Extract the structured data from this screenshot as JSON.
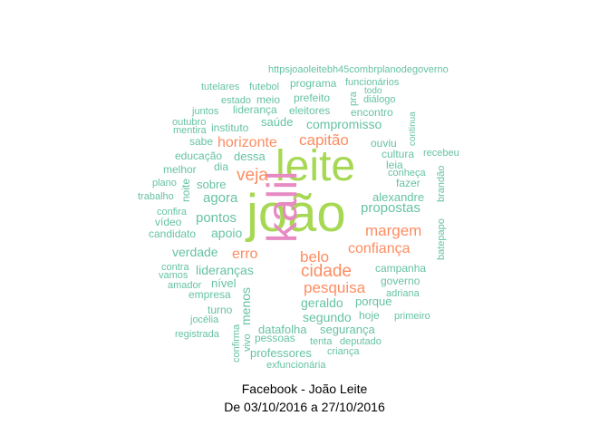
{
  "caption": {
    "line1": "Facebook - João Leite",
    "line2": "De 03/10/2016 a 27/10/2016"
  },
  "colors": {
    "tier1": "#a6d854",
    "tier2": "#e78ac3",
    "tier3": "#fc8d62",
    "tier4": "#66c2a5"
  },
  "words": [
    {
      "text": "joão",
      "tier": "tier1"
    },
    {
      "text": "leite",
      "tier": "tier1"
    },
    {
      "text": "kalil",
      "tier": "tier2"
    },
    {
      "text": "capitão",
      "tier": "tier3"
    },
    {
      "text": "horizonte",
      "tier": "tier3"
    },
    {
      "text": "veja",
      "tier": "tier3"
    },
    {
      "text": "margem",
      "tier": "tier3"
    },
    {
      "text": "confiança",
      "tier": "tier3"
    },
    {
      "text": "belo",
      "tier": "tier3"
    },
    {
      "text": "erro",
      "tier": "tier3"
    },
    {
      "text": "cidade",
      "tier": "tier3"
    },
    {
      "text": "pesquisa",
      "tier": "tier3"
    },
    {
      "text": "httpsjoaoleitebh45combrplanodegoverno",
      "tier": "tier4"
    },
    {
      "text": "programa",
      "tier": "tier4"
    },
    {
      "text": "funcionários",
      "tier": "tier4"
    },
    {
      "text": "tutelares",
      "tier": "tier4"
    },
    {
      "text": "futebol",
      "tier": "tier4"
    },
    {
      "text": "pra",
      "tier": "tier4"
    },
    {
      "text": "todo",
      "tier": "tier4"
    },
    {
      "text": "diálogo",
      "tier": "tier4"
    },
    {
      "text": "estado",
      "tier": "tier4"
    },
    {
      "text": "meio",
      "tier": "tier4"
    },
    {
      "text": "prefeito",
      "tier": "tier4"
    },
    {
      "text": "juntos",
      "tier": "tier4"
    },
    {
      "text": "liderança",
      "tier": "tier4"
    },
    {
      "text": "eleitores",
      "tier": "tier4"
    },
    {
      "text": "encontro",
      "tier": "tier4"
    },
    {
      "text": "continua",
      "tier": "tier4"
    },
    {
      "text": "outubro",
      "tier": "tier4"
    },
    {
      "text": "mentira",
      "tier": "tier4"
    },
    {
      "text": "instituto",
      "tier": "tier4"
    },
    {
      "text": "saúde",
      "tier": "tier4"
    },
    {
      "text": "compromisso",
      "tier": "tier4"
    },
    {
      "text": "sabe",
      "tier": "tier4"
    },
    {
      "text": "ouviu",
      "tier": "tier4"
    },
    {
      "text": "educação",
      "tier": "tier4"
    },
    {
      "text": "dessa",
      "tier": "tier4"
    },
    {
      "text": "cultura",
      "tier": "tier4"
    },
    {
      "text": "recebeu",
      "tier": "tier4"
    },
    {
      "text": "melhor",
      "tier": "tier4"
    },
    {
      "text": "dia",
      "tier": "tier4"
    },
    {
      "text": "leia",
      "tier": "tier4"
    },
    {
      "text": "conheça",
      "tier": "tier4"
    },
    {
      "text": "plano",
      "tier": "tier4"
    },
    {
      "text": "noite",
      "tier": "tier4"
    },
    {
      "text": "sobre",
      "tier": "tier4"
    },
    {
      "text": "fazer",
      "tier": "tier4"
    },
    {
      "text": "brandão",
      "tier": "tier4"
    },
    {
      "text": "trabalho",
      "tier": "tier4"
    },
    {
      "text": "agora",
      "tier": "tier4"
    },
    {
      "text": "alexandre",
      "tier": "tier4"
    },
    {
      "text": "confira",
      "tier": "tier4"
    },
    {
      "text": "propostas",
      "tier": "tier4"
    },
    {
      "text": "vídeo",
      "tier": "tier4"
    },
    {
      "text": "pontos",
      "tier": "tier4"
    },
    {
      "text": "batepapo",
      "tier": "tier4"
    },
    {
      "text": "candidato",
      "tier": "tier4"
    },
    {
      "text": "apoio",
      "tier": "tier4"
    },
    {
      "text": "verdade",
      "tier": "tier4"
    },
    {
      "text": "contra",
      "tier": "tier4"
    },
    {
      "text": "vamos",
      "tier": "tier4"
    },
    {
      "text": "lideranças",
      "tier": "tier4"
    },
    {
      "text": "campanha",
      "tier": "tier4"
    },
    {
      "text": "amador",
      "tier": "tier4"
    },
    {
      "text": "nível",
      "tier": "tier4"
    },
    {
      "text": "governo",
      "tier": "tier4"
    },
    {
      "text": "empresa",
      "tier": "tier4"
    },
    {
      "text": "menos",
      "tier": "tier4"
    },
    {
      "text": "adriana",
      "tier": "tier4"
    },
    {
      "text": "geraldo",
      "tier": "tier4"
    },
    {
      "text": "porque",
      "tier": "tier4"
    },
    {
      "text": "turno",
      "tier": "tier4"
    },
    {
      "text": "segundo",
      "tier": "tier4"
    },
    {
      "text": "hoje",
      "tier": "tier4"
    },
    {
      "text": "primeiro",
      "tier": "tier4"
    },
    {
      "text": "jocélia",
      "tier": "tier4"
    },
    {
      "text": "datafolha",
      "tier": "tier4"
    },
    {
      "text": "segurança",
      "tier": "tier4"
    },
    {
      "text": "registrada",
      "tier": "tier4"
    },
    {
      "text": "confirma",
      "tier": "tier4"
    },
    {
      "text": "vivo",
      "tier": "tier4"
    },
    {
      "text": "pessoas",
      "tier": "tier4"
    },
    {
      "text": "tenta",
      "tier": "tier4"
    },
    {
      "text": "deputado",
      "tier": "tier4"
    },
    {
      "text": "professores",
      "tier": "tier4"
    },
    {
      "text": "criança",
      "tier": "tier4"
    },
    {
      "text": "exfuncionária",
      "tier": "tier4"
    }
  ]
}
